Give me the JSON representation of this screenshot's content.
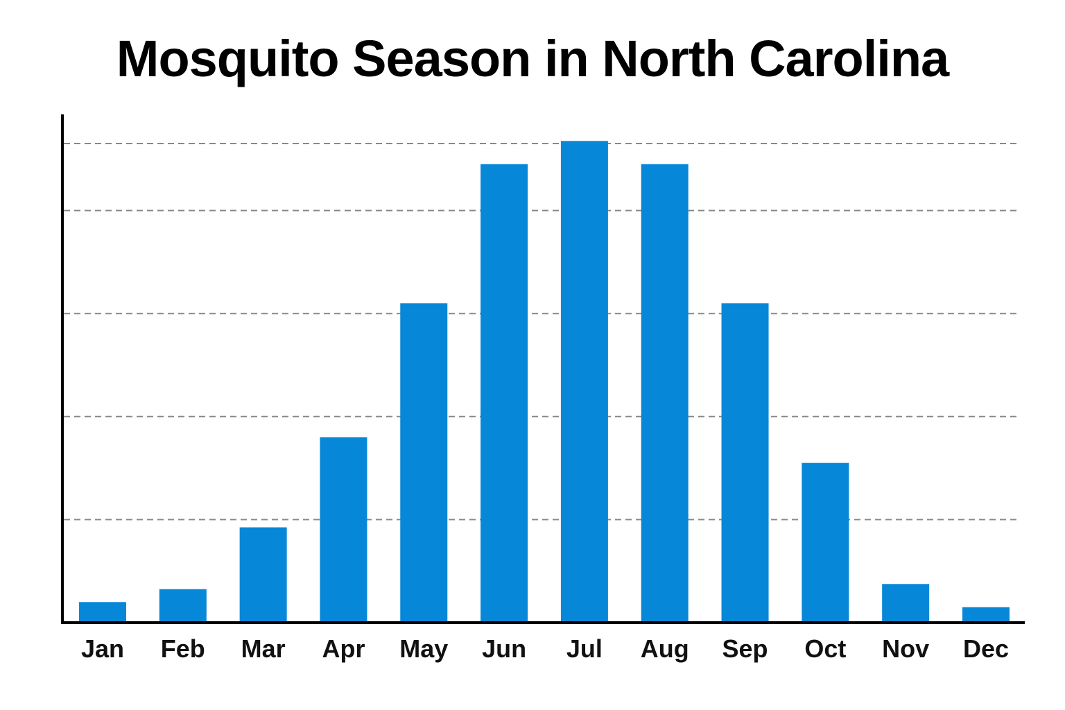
{
  "chart_data": {
    "type": "bar",
    "title": "Mosquito Season in North Carolina",
    "xlabel": "",
    "ylabel": "",
    "categories": [
      "Jan",
      "Feb",
      "Mar",
      "Apr",
      "May",
      "Jun",
      "Jul",
      "Aug",
      "Sep",
      "Oct",
      "Nov",
      "Dec"
    ],
    "values": [
      4,
      6.5,
      18.5,
      36,
      62,
      89,
      93.5,
      89,
      62,
      31,
      7.5,
      3
    ],
    "ylim": [
      0,
      100
    ],
    "gridlines": [
      20,
      40,
      60,
      80,
      93
    ],
    "grid": true,
    "grid_style": "dashed",
    "colors": {
      "bar": "#0787d8",
      "axis": "#000000",
      "grid": "#888888"
    }
  }
}
